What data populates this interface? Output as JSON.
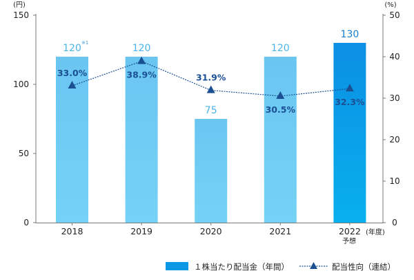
{
  "chart_data": {
    "type": "bar+line",
    "categories": [
      "2018",
      "2019",
      "2020",
      "2021",
      "2022"
    ],
    "series": [
      {
        "name": "１株当たり配当金（年間）",
        "type": "bar",
        "axis": "left",
        "values": [
          120,
          120,
          75,
          120,
          130
        ],
        "labels": [
          "120",
          "120",
          "75",
          "120",
          "130"
        ],
        "colors": [
          "#6dcaf2",
          "#6dcaf2",
          "#6dcaf2",
          "#6dcaf2",
          "#0d98e6"
        ],
        "label_colors": [
          "#4ab3e8",
          "#4ab3e8",
          "#4ab3e8",
          "#4ab3e8",
          "#1a7fcf"
        ]
      },
      {
        "name": "配当性向（連結）",
        "type": "line",
        "axis": "right",
        "values": [
          33.0,
          38.9,
          31.9,
          30.5,
          32.3
        ],
        "labels": [
          "33.0%",
          "38.9%",
          "31.9%",
          "30.5%",
          "32.3%"
        ],
        "color": "#1b4f94"
      }
    ],
    "left_axis": {
      "unit": "(円)",
      "min": 0,
      "max": 150,
      "ticks": [
        0,
        50,
        100,
        150
      ]
    },
    "right_axis": {
      "unit": "(%)",
      "min": 0,
      "max": 50,
      "ticks": [
        0,
        10,
        20,
        30,
        40,
        50
      ]
    },
    "x_suffix": "(年度)",
    "forecast_label": "予想",
    "note_mark": "※1",
    "legend_position": "bottom-right"
  }
}
